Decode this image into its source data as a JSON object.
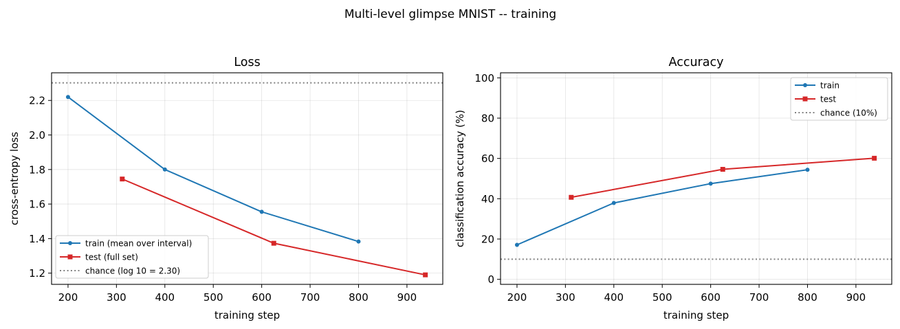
{
  "figure": {
    "suptitle": "Multi-level glimpse MNIST -- training",
    "colors": {
      "train": "#1f77b4",
      "test": "#d62728",
      "chance": "#808080"
    }
  },
  "chart_data": [
    {
      "type": "line",
      "title": "Loss",
      "xlabel": "training step",
      "ylabel": "cross-entropy loss",
      "xlim": [
        166,
        974
      ],
      "ylim": [
        1.135,
        2.36
      ],
      "xticks": [
        "200",
        "300",
        "400",
        "500",
        "600",
        "700",
        "800",
        "900"
      ],
      "yticks": [
        "1.2",
        "1.4",
        "1.6",
        "1.8",
        "2.0",
        "2.2"
      ],
      "grid": true,
      "legend_position": "lower-left",
      "series": [
        {
          "name": "train (mean over interval)",
          "color": "#1f77b4",
          "marker": "circle",
          "x": [
            200,
            400,
            600,
            800
          ],
          "y": [
            2.22,
            1.8,
            1.555,
            1.383
          ]
        },
        {
          "name": "test (full set)",
          "color": "#d62728",
          "marker": "square",
          "x": [
            312,
            625,
            938
          ],
          "y": [
            1.745,
            1.373,
            1.19
          ]
        }
      ],
      "hlines": [
        {
          "name": "chance (log 10 = 2.30)",
          "y": 2.302,
          "color": "#808080",
          "style": "dotted"
        }
      ]
    },
    {
      "type": "line",
      "title": "Accuracy",
      "xlabel": "training step",
      "ylabel": "classification accuracy (%)",
      "xlim": [
        166,
        974
      ],
      "ylim": [
        -2.5,
        102.5
      ],
      "xticks": [
        "200",
        "300",
        "400",
        "500",
        "600",
        "700",
        "800",
        "900"
      ],
      "yticks": [
        "0",
        "20",
        "40",
        "60",
        "80",
        "100"
      ],
      "grid": true,
      "legend_position": "upper-right",
      "series": [
        {
          "name": "train",
          "color": "#1f77b4",
          "marker": "circle",
          "x": [
            200,
            400,
            600,
            800
          ],
          "y": [
            17.1,
            37.9,
            47.5,
            54.4
          ]
        },
        {
          "name": "test",
          "color": "#d62728",
          "marker": "square",
          "x": [
            312,
            625,
            938
          ],
          "y": [
            40.7,
            54.6,
            60.1
          ]
        }
      ],
      "hlines": [
        {
          "name": "chance (10%)",
          "y": 10,
          "color": "#808080",
          "style": "dotted"
        }
      ]
    }
  ]
}
